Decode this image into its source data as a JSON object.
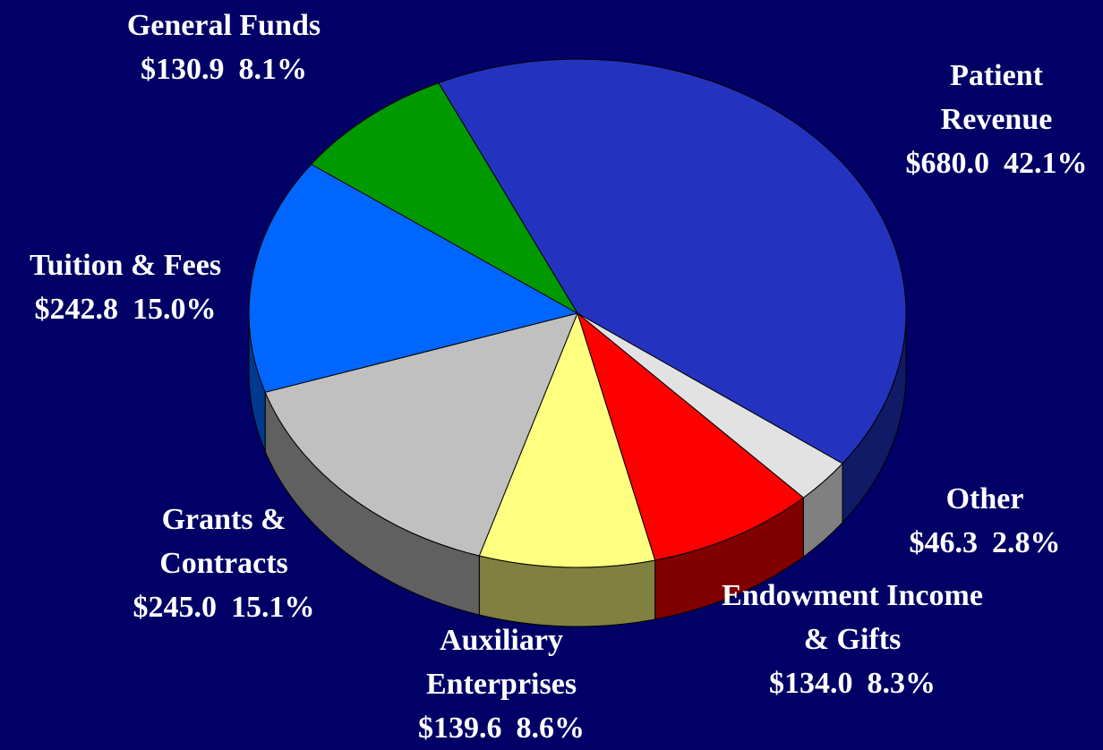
{
  "chart_data": {
    "type": "pie3d",
    "categories": [
      "Patient Revenue",
      "Other",
      "Endowment Income & Gifts",
      "Auxiliary Enterprises",
      "Grants & Contracts",
      "Tuition & Fees",
      "General Funds"
    ],
    "values": [
      680.0,
      46.3,
      134.0,
      139.6,
      245.0,
      242.8,
      130.9
    ],
    "value_labels": [
      "$680.0",
      "$46.3",
      "$134.0",
      "$139.6",
      "$245.0",
      "$242.8",
      "$130.9"
    ],
    "shares": [
      42.1,
      2.8,
      8.3,
      8.6,
      15.1,
      15.0,
      8.1
    ],
    "share_labels": [
      "42.1%",
      "2.8%",
      "8.3%",
      "8.6%",
      "15.1%",
      "15.0%",
      "8.1%"
    ],
    "colors": [
      "#2333c0",
      "#e2e2e2",
      "#ff0000",
      "#ffff80",
      "#c0c0c0",
      "#0066ff",
      "#009900"
    ],
    "side_colors": [
      "#111a66",
      "#808080",
      "#800000",
      "#808040",
      "#606060",
      "#003a90",
      "#004d00"
    ]
  }
}
